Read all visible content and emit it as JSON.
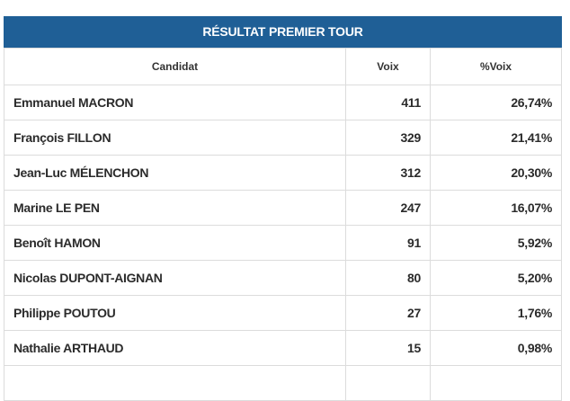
{
  "table": {
    "title": "RÉSULTAT PREMIER TOUR",
    "headers": {
      "candidat": "Candidat",
      "voix": "Voix",
      "pct_voix": "%Voix"
    },
    "rows": [
      {
        "candidat": "Emmanuel MACRON",
        "voix": "411",
        "pct_voix": "26,74%"
      },
      {
        "candidat": "François FILLON",
        "voix": "329",
        "pct_voix": "21,41%"
      },
      {
        "candidat": "Jean-Luc MÉLENCHON",
        "voix": "312",
        "pct_voix": "20,30%"
      },
      {
        "candidat": "Marine LE PEN",
        "voix": "247",
        "pct_voix": "16,07%"
      },
      {
        "candidat": "Benoît HAMON",
        "voix": "91",
        "pct_voix": "5,92%"
      },
      {
        "candidat": "Nicolas DUPONT-AIGNAN",
        "voix": "80",
        "pct_voix": "5,20%"
      },
      {
        "candidat": "Philippe POUTOU",
        "voix": "27",
        "pct_voix": "1,76%"
      },
      {
        "candidat": "Nathalie ARTHAUD",
        "voix": "15",
        "pct_voix": "0,98%"
      }
    ]
  },
  "colors": {
    "header_bar": "#1f5f96",
    "border": "#dcdcdc"
  }
}
